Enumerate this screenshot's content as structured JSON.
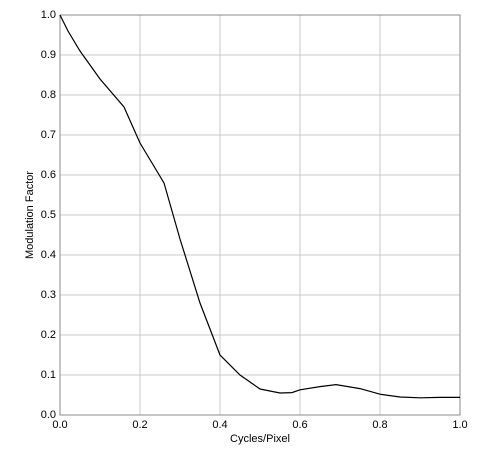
{
  "chart_data": {
    "type": "line",
    "x_label": "Cycles/Pixel",
    "y_label": "Modulation Factor",
    "x": [
      0.0,
      0.02,
      0.05,
      0.1,
      0.16,
      0.2,
      0.26,
      0.3,
      0.35,
      0.4,
      0.45,
      0.5,
      0.55,
      0.58,
      0.6,
      0.65,
      0.69,
      0.75,
      0.8,
      0.85,
      0.9,
      0.95,
      1.0
    ],
    "series": [
      {
        "color": "#000000",
        "values": [
          1.0,
          0.96,
          0.91,
          0.84,
          0.77,
          0.68,
          0.58,
          0.44,
          0.28,
          0.15,
          0.1,
          0.065,
          0.055,
          0.056,
          0.063,
          0.071,
          0.076,
          0.066,
          0.052,
          0.045,
          0.043,
          0.044,
          0.044
        ]
      }
    ],
    "xlim": [
      0,
      1
    ],
    "ylim": [
      0,
      1
    ],
    "xticks": [
      {
        "value": 0,
        "label": "0.0"
      },
      0.2,
      0.4,
      0.6,
      0.8,
      {
        "value": 1,
        "label": "1.0"
      }
    ],
    "yticks": [
      {
        "value": 0,
        "label": "0.0"
      },
      0.1,
      0.2,
      0.3,
      0.4,
      0.5,
      0.6,
      0.7,
      0.8,
      0.9,
      {
        "value": 1,
        "label": "1.0"
      }
    ],
    "grid": true
  }
}
